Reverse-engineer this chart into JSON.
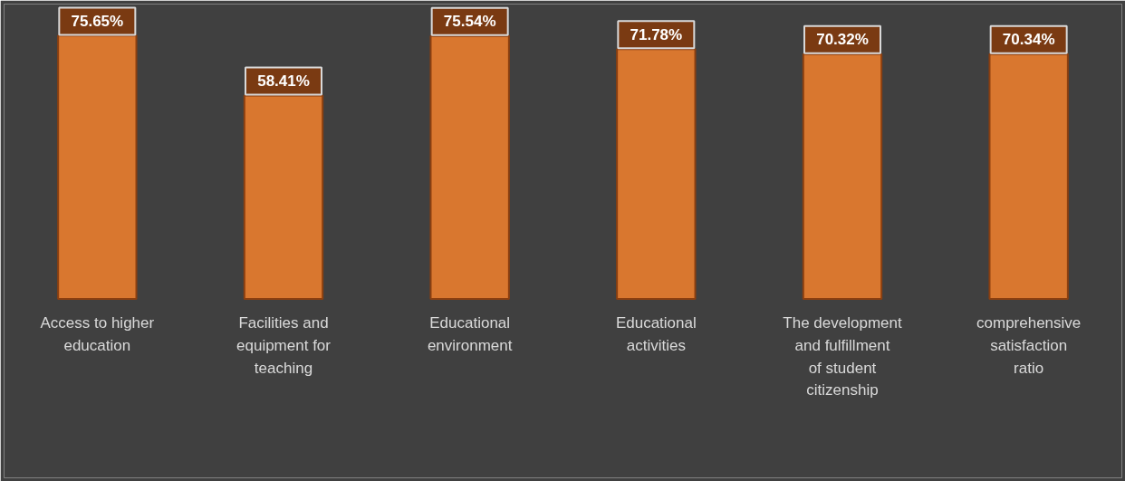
{
  "chart_data": {
    "type": "bar",
    "categories": [
      "Access to higher education",
      "Facilities and equipment for teaching",
      "Educational environment",
      "Educational activities",
      "The development and fulfillment of student citizenship",
      "comprehensive satisfaction ratio"
    ],
    "values": [
      75.65,
      58.41,
      75.54,
      71.78,
      70.32,
      70.34
    ],
    "value_labels": [
      "75.65%",
      "58.41%",
      "75.54%",
      "71.78%",
      "70.32%",
      "70.34%"
    ],
    "color": "#d9772f"
  }
}
